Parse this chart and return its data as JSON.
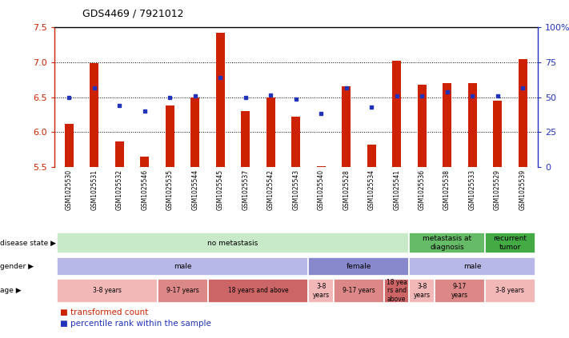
{
  "title": "GDS4469 / 7921012",
  "samples": [
    "GSM1025530",
    "GSM1025531",
    "GSM1025532",
    "GSM1025546",
    "GSM1025535",
    "GSM1025544",
    "GSM1025545",
    "GSM1025537",
    "GSM1025542",
    "GSM1025543",
    "GSM1025540",
    "GSM1025528",
    "GSM1025534",
    "GSM1025541",
    "GSM1025536",
    "GSM1025538",
    "GSM1025533",
    "GSM1025529",
    "GSM1025539"
  ],
  "bar_values": [
    6.12,
    6.98,
    5.87,
    5.65,
    6.38,
    6.5,
    7.42,
    6.3,
    6.5,
    6.22,
    5.52,
    6.65,
    5.82,
    7.02,
    6.68,
    6.7,
    6.7,
    6.45,
    7.04
  ],
  "blue_values": [
    6.5,
    6.63,
    6.38,
    6.3,
    6.5,
    6.52,
    6.78,
    6.5,
    6.53,
    6.47,
    6.27,
    6.63,
    6.36,
    6.52,
    6.52,
    6.58,
    6.52,
    6.52,
    6.63
  ],
  "ymin": 5.5,
  "ymax": 7.5,
  "y_ticks_left": [
    5.5,
    6.0,
    6.5,
    7.0,
    7.5
  ],
  "y_ticks_right_vals": [
    0,
    25,
    50,
    75,
    100
  ],
  "y_ticks_right_labels": [
    "0",
    "25",
    "50",
    "75",
    "100%"
  ],
  "bar_color": "#cc2200",
  "blue_color": "#2233bb",
  "bg_color": "#ffffff",
  "grid_color": "#000000",
  "spine_top_color": "#000000",
  "disease_state": {
    "groups": [
      {
        "label": "no metastasis",
        "start": 0,
        "end": 14,
        "color": "#c8eac8"
      },
      {
        "label": "metastasis at\ndiagnosis",
        "start": 14,
        "end": 17,
        "color": "#66bb66"
      },
      {
        "label": "recurrent\ntumor",
        "start": 17,
        "end": 19,
        "color": "#44aa44"
      }
    ]
  },
  "gender": {
    "groups": [
      {
        "label": "male",
        "start": 0,
        "end": 10,
        "color": "#b8b8e8"
      },
      {
        "label": "female",
        "start": 10,
        "end": 14,
        "color": "#8888cc"
      },
      {
        "label": "male",
        "start": 14,
        "end": 19,
        "color": "#b8b8e8"
      }
    ]
  },
  "age": {
    "groups": [
      {
        "label": "3-8 years",
        "start": 0,
        "end": 4,
        "color": "#f2b8b8"
      },
      {
        "label": "9-17 years",
        "start": 4,
        "end": 6,
        "color": "#dd8888"
      },
      {
        "label": "18 years and above",
        "start": 6,
        "end": 10,
        "color": "#cc6666"
      },
      {
        "label": "3-8\nyears",
        "start": 10,
        "end": 11,
        "color": "#f2b8b8"
      },
      {
        "label": "9-17 years",
        "start": 11,
        "end": 13,
        "color": "#dd8888"
      },
      {
        "label": "18 yea\nrs and\nabove",
        "start": 13,
        "end": 14,
        "color": "#cc6666"
      },
      {
        "label": "3-8\nyears",
        "start": 14,
        "end": 15,
        "color": "#f2b8b8"
      },
      {
        "label": "9-17\nyears",
        "start": 15,
        "end": 17,
        "color": "#dd8888"
      },
      {
        "label": "3-8 years",
        "start": 17,
        "end": 19,
        "color": "#f2b8b8"
      }
    ]
  },
  "label_color": "#555555",
  "sample_bg": "#dddddd"
}
